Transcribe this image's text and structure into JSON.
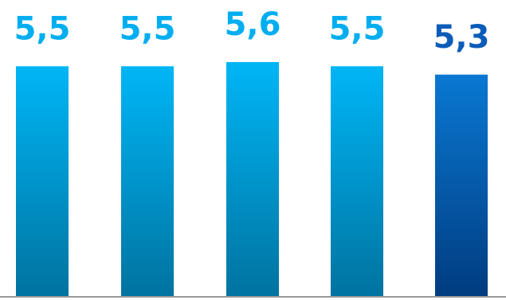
{
  "chart_data": {
    "type": "bar",
    "categories": [
      "",
      "",
      "",
      "",
      ""
    ],
    "values": [
      5.5,
      5.5,
      5.6,
      5.5,
      5.3
    ],
    "data_labels": [
      "5,5",
      "5,5",
      "5,6",
      "5,5",
      "5,3"
    ],
    "title": "",
    "xlabel": "",
    "ylabel": "",
    "ylim": [
      0,
      6.5
    ],
    "grid": false,
    "legend": "none",
    "colors": {
      "bar_light_top": "#00b6f6",
      "bar_light_bottom": "#0073a0",
      "bar_dark_top": "#0a78d2",
      "bar_dark_bottom": "#003c80",
      "label_light": "#00aef0",
      "label_dark": "#0a5cb8",
      "baseline": "#9a9a9a"
    },
    "highlight_index": 4
  }
}
